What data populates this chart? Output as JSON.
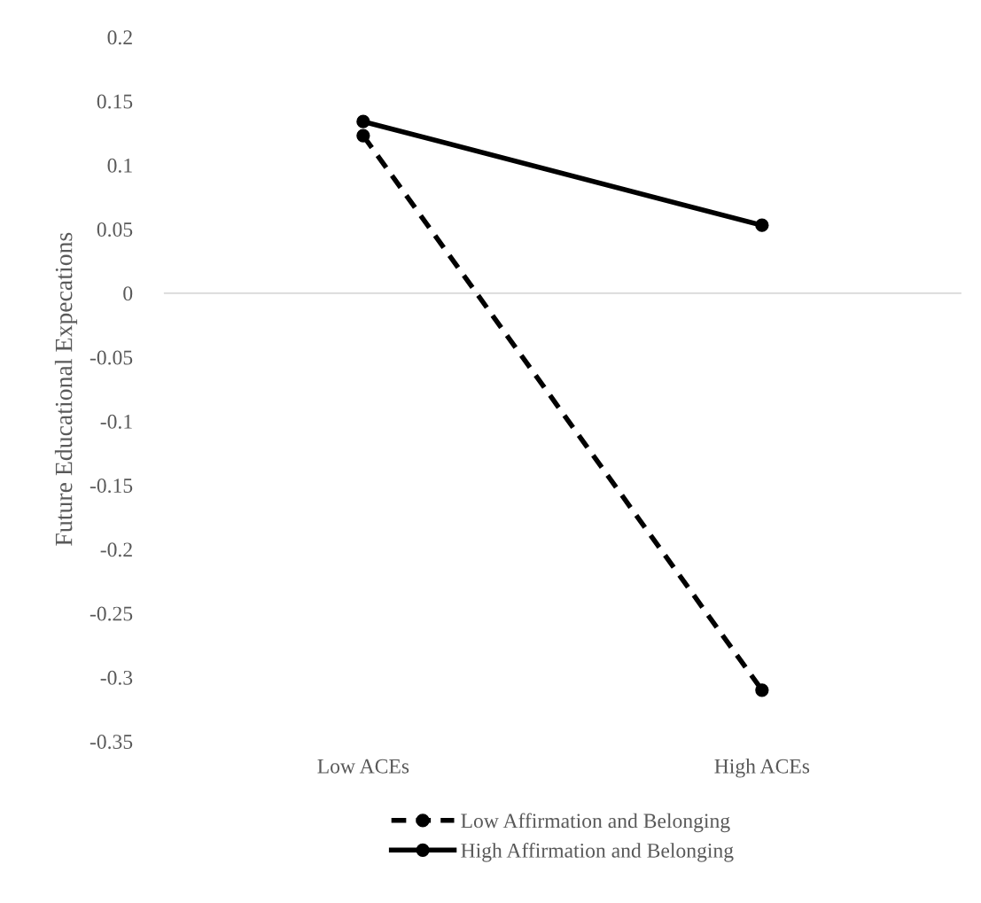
{
  "chart_data": {
    "type": "line",
    "ylabel": "Future Educational Expecations",
    "categories": [
      "Low ACEs",
      "High ACEs"
    ],
    "series": [
      {
        "name": "Low Affirmation and Belonging",
        "color": "#000000",
        "values": [
          0.123,
          -0.31
        ],
        "line_style": "dashed"
      },
      {
        "name": "High Affirmation and Belonging",
        "color": "#000000",
        "values": [
          0.134,
          0.053
        ],
        "line_style": "solid"
      }
    ],
    "ylim": [
      -0.35,
      0.2
    ],
    "yticks": [
      {
        "value": -0.35,
        "label": "-0.35"
      },
      {
        "value": -0.3,
        "label": "-0.3"
      },
      {
        "value": -0.25,
        "label": "-0.25"
      },
      {
        "value": -0.2,
        "label": "-0.2"
      },
      {
        "value": -0.15,
        "label": "-0.15"
      },
      {
        "value": -0.1,
        "label": "-0.1"
      },
      {
        "value": -0.05,
        "label": "-0.05"
      },
      0,
      0.05,
      0.1,
      0.15,
      0.2
    ],
    "ref_lines": [
      {
        "axis": "y",
        "value": 0,
        "color": "#d9d9d9",
        "line_style": "solid"
      }
    ],
    "marker": "circle",
    "legend": "bottom"
  }
}
